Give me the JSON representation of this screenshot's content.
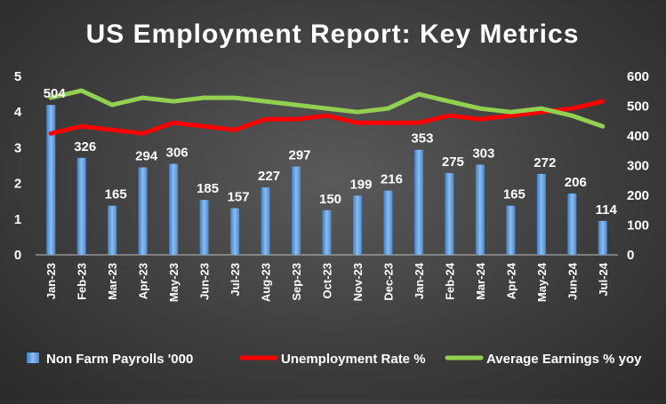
{
  "chart_data": {
    "type": "bar",
    "title": "US Employment Report: Key Metrics",
    "categories": [
      "Jan-23",
      "Feb-23",
      "Mar-23",
      "Apr-23",
      "May-23",
      "Jun-23",
      "Jul-23",
      "Aug-23",
      "Sep-23",
      "Oct-23",
      "Nov-23",
      "Dec-23",
      "Jan-24",
      "Feb-24",
      "Mar-24",
      "Apr-24",
      "May-24",
      "Jun-24",
      "Jul-24"
    ],
    "y_left": {
      "min": 0,
      "max": 5,
      "ticks": [
        "0",
        "1",
        "2",
        "3",
        "4",
        "5"
      ]
    },
    "y_right": {
      "min": 0,
      "max": 600,
      "ticks": [
        "0",
        "100",
        "200",
        "300",
        "400",
        "500",
        "600"
      ]
    },
    "grid": false,
    "legend_position": "bottom",
    "series": [
      {
        "name": "Non Farm Payrolls '000",
        "type": "bar",
        "axis": "right",
        "color": "#5b9bd5",
        "values": [
          504,
          326,
          165,
          294,
          306,
          185,
          157,
          227,
          297,
          150,
          199,
          216,
          353,
          275,
          303,
          165,
          272,
          206,
          114
        ],
        "data_labels": [
          "504",
          "326",
          "165",
          "294",
          "306",
          "185",
          "157",
          "227",
          "297",
          "150",
          "199",
          "216",
          "353",
          "275",
          "303",
          "165",
          "272",
          "206",
          "114"
        ]
      },
      {
        "name": "Unemployment Rate %",
        "type": "line",
        "axis": "left",
        "color": "#ff0000",
        "values": [
          3.4,
          3.6,
          3.5,
          3.4,
          3.7,
          3.6,
          3.5,
          3.8,
          3.8,
          3.9,
          3.7,
          3.7,
          3.7,
          3.9,
          3.8,
          3.9,
          4.0,
          4.1,
          4.3
        ]
      },
      {
        "name": "Average Earnings % yoy",
        "type": "line",
        "axis": "left",
        "color": "#92d050",
        "values": [
          4.4,
          4.6,
          4.2,
          4.4,
          4.3,
          4.4,
          4.4,
          4.3,
          4.2,
          4.1,
          4.0,
          4.1,
          4.5,
          4.3,
          4.1,
          4.0,
          4.1,
          3.9,
          3.6
        ]
      }
    ]
  }
}
